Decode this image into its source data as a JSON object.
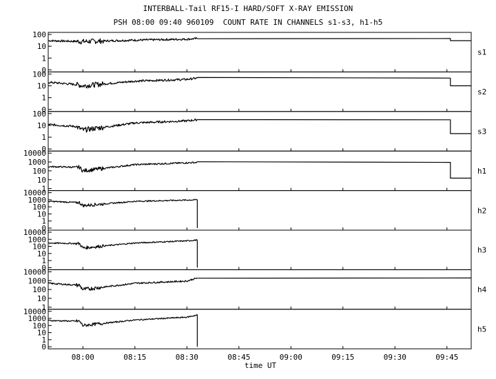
{
  "title": "INTERBALL-Tail RF15-I HARD/SOFT X-RAY EMISSION",
  "subtitle": "PSH 08:00 09:40 960109  COUNT RATE IN CHANNELS s1-s3, h1-h5",
  "chart_data": {
    "type": "line",
    "title": "INTERBALL-Tail RF15-I HARD/SOFT X-RAY EMISSION",
    "subtitle": "PSH 08:00 09:40 960109  COUNT RATE IN CHANNELS s1-s3, h1-h5",
    "xlabel": "time UT",
    "x_ticks": [
      "08:00",
      "08:15",
      "08:30",
      "08:45",
      "09:00",
      "09:15",
      "09:30",
      "09:45"
    ],
    "x_range": [
      "07:50",
      "09:52"
    ],
    "y_scale": "log",
    "grid": false,
    "panels": [
      {
        "name": "s1",
        "y_ticks": [
          "100",
          "10",
          "1",
          "0"
        ],
        "series": [
          {
            "x": [
              "07:50",
              "08:00",
              "08:15",
              "08:30",
              "08:33",
              "09:46",
              "09:46",
              "09:52"
            ],
            "y": [
              30,
              25,
              33,
              40,
              45,
              45,
              30,
              30
            ]
          }
        ]
      },
      {
        "name": "s2",
        "y_ticks": [
          "100",
          "10",
          "1",
          "0"
        ],
        "series": [
          {
            "x": [
              "07:50",
              "07:58",
              "08:00",
              "08:15",
              "08:30",
              "08:33",
              "09:46",
              "09:46",
              "09:52"
            ],
            "y": [
              20,
              13,
              10,
              25,
              35,
              45,
              45,
              10,
              10
            ]
          }
        ]
      },
      {
        "name": "s3",
        "y_ticks": [
          "100",
          "10",
          "1",
          "0"
        ],
        "series": [
          {
            "x": [
              "07:50",
              "07:58",
              "08:00",
              "08:15",
              "08:30",
              "08:33",
              "09:46",
              "09:46",
              "09:52"
            ],
            "y": [
              12,
              8,
              4,
              16,
              24,
              30,
              30,
              2,
              2
            ]
          }
        ]
      },
      {
        "name": "h1",
        "y_ticks": [
          "10000",
          "1000",
          "100",
          "10",
          "1"
        ],
        "series": [
          {
            "x": [
              "07:50",
              "07:59",
              "08:00",
              "08:15",
              "08:30",
              "08:33",
              "09:46",
              "09:46",
              "09:52"
            ],
            "y": [
              300,
              250,
              100,
              500,
              800,
              900,
              900,
              15,
              15
            ]
          }
        ]
      },
      {
        "name": "h2",
        "y_ticks": [
          "10000",
          "1000",
          "100",
          "10",
          "1",
          "0"
        ],
        "series": [
          {
            "x": [
              "07:50",
              "07:59",
              "08:00",
              "08:15",
              "08:30",
              "08:33",
              "08:33"
            ],
            "y": [
              600,
              400,
              150,
              600,
              900,
              1000,
              0
            ]
          }
        ]
      },
      {
        "name": "h3",
        "y_ticks": [
          "10000",
          "1000",
          "100",
          "10",
          "1",
          "0"
        ],
        "series": [
          {
            "x": [
              "07:50",
              "07:59",
              "08:00",
              "08:15",
              "08:30",
              "08:33",
              "08:33"
            ],
            "y": [
              300,
              250,
              60,
              300,
              600,
              800,
              0
            ]
          }
        ]
      },
      {
        "name": "h4",
        "y_ticks": [
          "10000",
          "1000",
          "100",
          "10",
          "1"
        ],
        "series": [
          {
            "x": [
              "07:50",
              "07:59",
              "08:00",
              "08:15",
              "08:30",
              "08:33",
              "09:52"
            ],
            "y": [
              500,
              300,
              100,
              500,
              900,
              2000,
              2000
            ]
          }
        ]
      },
      {
        "name": "h5",
        "y_ticks": [
          "10000",
          "1000",
          "100",
          "10",
          "1",
          "0"
        ],
        "series": [
          {
            "x": [
              "07:50",
              "07:59",
              "08:00",
              "08:15",
              "08:30",
              "08:33",
              "08:33"
            ],
            "y": [
              500,
              400,
              100,
              600,
              1500,
              3000,
              0
            ]
          }
        ]
      }
    ]
  }
}
